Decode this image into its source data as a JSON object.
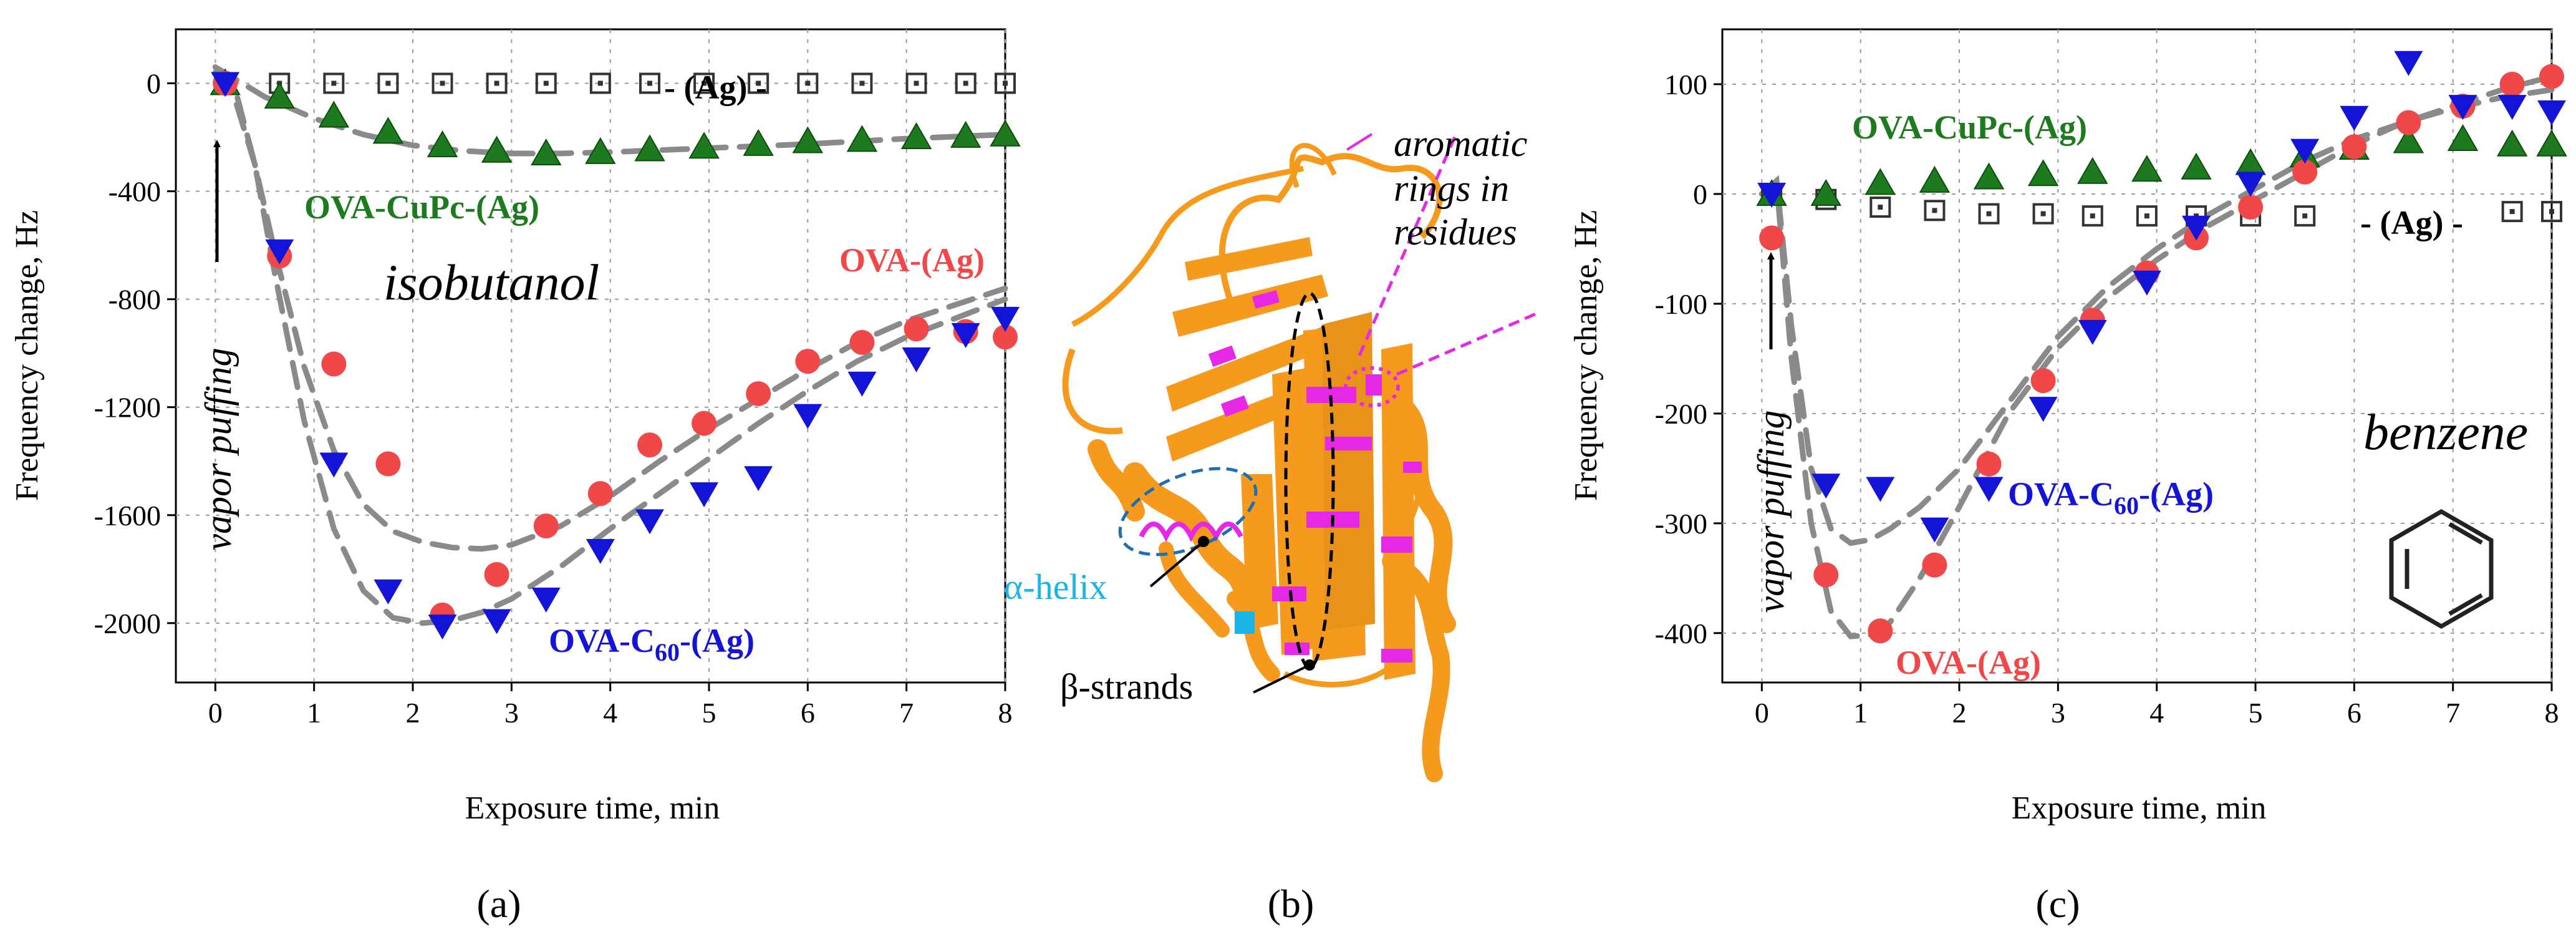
{
  "figure": {
    "panels": {
      "a": "(a)",
      "b": "(b)",
      "c": "(c)"
    },
    "colors": {
      "ova": "#f04848",
      "c60": "#1414d8",
      "cupc": "#1e7a1e",
      "ag": "#333333",
      "fit": "#8a8a8a",
      "protein": "#f59a1c",
      "aromatic": "#e628e6",
      "helix_label": "#19b5e6"
    },
    "structure": {
      "aromatic_label_1": "aromatic",
      "aromatic_label_2": "rings in",
      "aromatic_label_3": "residues",
      "helix_label": "α-helix",
      "strands_label": "β-strands"
    }
  },
  "chart_data": [
    {
      "type": "scatter",
      "panel": "a",
      "xlabel": "Exposure time, min",
      "ylabel": "Frequency change, Hz",
      "xlim": [
        -0.4,
        8
      ],
      "ylim": [
        -2220,
        200
      ],
      "xticks": [
        "0",
        "1",
        "2",
        "3",
        "4",
        "5",
        "6",
        "7",
        "8"
      ],
      "yticks": [
        "0",
        "-400",
        "-800",
        "-1200",
        "-1600",
        "-2000"
      ],
      "ytick_values": [
        0,
        -400,
        -800,
        -1200,
        -1600,
        -2000
      ],
      "annotations": {
        "analyte": "isobutanol",
        "puff": "vapor puffing",
        "ag_label": "- (Ag) -",
        "cupc_label": "OVA-CuPc-(Ag)",
        "ova_label": "OVA-(Ag)",
        "c60_label_prefix": "OVA-C",
        "c60_label_sub": "60",
        "c60_label_suffix": "-(Ag)"
      },
      "series": [
        {
          "name": "OVA-(Ag)",
          "marker": "circle",
          "color": "#f04848",
          "x": [
            0.1,
            0.65,
            1.2,
            1.75,
            2.3,
            2.85,
            3.35,
            3.9,
            4.4,
            4.95,
            5.5,
            6.0,
            6.55,
            7.1,
            7.6,
            8.0
          ],
          "y": [
            0,
            -640,
            -1040,
            -1410,
            -1970,
            -1820,
            -1640,
            -1520,
            -1340,
            -1260,
            -1150,
            -1030,
            -960,
            -910,
            -920,
            -940
          ]
        },
        {
          "name": "OVA-C60-(Ag)",
          "marker": "triangle-down",
          "color": "#1414d8",
          "x": [
            0.1,
            0.65,
            1.2,
            1.75,
            2.3,
            2.85,
            3.35,
            3.9,
            4.4,
            4.95,
            5.5,
            6.0,
            6.55,
            7.1,
            7.6,
            8.0
          ],
          "y": [
            0,
            -620,
            -1410,
            -1880,
            -2010,
            -1990,
            -1910,
            -1730,
            -1620,
            -1520,
            -1460,
            -1230,
            -1110,
            -1020,
            -930,
            -870
          ]
        },
        {
          "name": "OVA-CuPc-(Ag)",
          "marker": "triangle-up",
          "color": "#1e7a1e",
          "x": [
            0.1,
            0.65,
            1.2,
            1.75,
            2.3,
            2.85,
            3.35,
            3.9,
            4.4,
            4.95,
            5.5,
            6.0,
            6.55,
            7.1,
            7.6,
            8.0
          ],
          "y": [
            0,
            -50,
            -120,
            -180,
            -230,
            -250,
            -260,
            -255,
            -245,
            -235,
            -225,
            -215,
            -210,
            -200,
            -195,
            -190
          ]
        },
        {
          "name": "(Ag)",
          "marker": "square-open",
          "color": "#333333",
          "x": [
            0.1,
            0.65,
            1.2,
            1.75,
            2.3,
            2.85,
            3.35,
            3.9,
            4.4,
            4.95,
            5.5,
            6.0,
            6.55,
            7.1,
            7.6,
            8.0
          ],
          "y": [
            0,
            0,
            0,
            0,
            0,
            0,
            0,
            0,
            0,
            0,
            0,
            0,
            0,
            0,
            0,
            0
          ]
        }
      ],
      "fits": [
        {
          "x": [
            0,
            0.2,
            0.4,
            0.6,
            0.9,
            1.2,
            1.5,
            1.8,
            2.1,
            2.4,
            2.7,
            3.0,
            3.5,
            4.0,
            4.5,
            5.0,
            5.5,
            6.0,
            6.5,
            7.0,
            7.5,
            8.0
          ],
          "y": [
            40,
            -60,
            -300,
            -620,
            -1050,
            -1360,
            -1560,
            -1660,
            -1700,
            -1720,
            -1725,
            -1710,
            -1640,
            -1530,
            -1400,
            -1280,
            -1170,
            -1060,
            -960,
            -880,
            -820,
            -760
          ]
        },
        {
          "x": [
            0,
            0.2,
            0.4,
            0.6,
            0.9,
            1.2,
            1.5,
            1.8,
            2.1,
            2.4,
            2.7,
            3.0,
            3.5,
            4.0,
            4.5,
            5.0,
            5.5,
            6.0,
            6.5,
            7.0,
            7.5,
            8.0
          ],
          "y": [
            60,
            -20,
            -300,
            -700,
            -1250,
            -1650,
            -1880,
            -1980,
            -2000,
            -1990,
            -1960,
            -1910,
            -1790,
            -1650,
            -1520,
            -1390,
            -1260,
            -1140,
            -1030,
            -940,
            -870,
            -800
          ]
        },
        {
          "x": [
            0,
            0.5,
            1.0,
            1.5,
            2.0,
            2.5,
            3.0,
            3.5,
            4.0,
            5.0,
            6.0,
            7.0,
            8.0
          ],
          "y": [
            60,
            -50,
            -130,
            -190,
            -230,
            -250,
            -260,
            -260,
            -255,
            -240,
            -225,
            -205,
            -190
          ]
        }
      ]
    },
    {
      "type": "scatter",
      "panel": "c",
      "xlabel": "Exposure time, min",
      "ylabel": "Frequency change, Hz",
      "xlim": [
        -0.4,
        8
      ],
      "ylim": [
        -445,
        150
      ],
      "xticks": [
        "0",
        "1",
        "2",
        "3",
        "4",
        "5",
        "6",
        "7",
        "8"
      ],
      "yticks": [
        "100",
        "0",
        "-100",
        "-200",
        "-300",
        "-400"
      ],
      "ytick_values": [
        100,
        0,
        -100,
        -200,
        -300,
        -400
      ],
      "annotations": {
        "analyte": "benzene",
        "puff": "vapor puffing",
        "ag_label": "- (Ag) -",
        "cupc_label": "OVA-CuPc-(Ag)",
        "ova_label": "OVA-(Ag)",
        "c60_label_prefix": "OVA-C",
        "c60_label_sub": "60",
        "c60_label_suffix": "-(Ag)"
      },
      "series": [
        {
          "name": "OVA-(Ag)",
          "marker": "circle",
          "color": "#f04848",
          "x": [
            0.1,
            0.65,
            1.2,
            1.75,
            2.3,
            2.85,
            3.35,
            3.9,
            4.4,
            4.95,
            5.5,
            6.0,
            6.55,
            7.1,
            7.6,
            8.0
          ],
          "y": [
            -40,
            -347,
            -398,
            -338,
            -246,
            -170,
            -115,
            -72,
            -40,
            -12,
            20,
            43,
            65,
            80,
            100,
            107
          ]
        },
        {
          "name": "OVA-C60-(Ag)",
          "marker": "triangle-down",
          "color": "#1414d8",
          "x": [
            0.1,
            0.65,
            1.2,
            1.75,
            2.3,
            2.85,
            3.35,
            3.9,
            4.4,
            4.95,
            5.5,
            6.0,
            6.55,
            7.1,
            7.6,
            8.0
          ],
          "y": [
            0,
            -265,
            -268,
            -305,
            -268,
            -195,
            -125,
            -80,
            -30,
            10,
            40,
            70,
            120,
            80,
            80,
            75
          ]
        },
        {
          "name": "OVA-CuPc-(Ag)",
          "marker": "triangle-up",
          "color": "#1e7a1e",
          "x": [
            0.1,
            0.65,
            1.2,
            1.75,
            2.3,
            2.85,
            3.35,
            3.9,
            4.4,
            4.95,
            5.5,
            6.0,
            6.55,
            7.1,
            7.6,
            8.0
          ],
          "y": [
            0,
            0,
            10,
            12,
            15,
            18,
            20,
            22,
            24,
            28,
            35,
            42,
            48,
            50,
            45,
            45
          ]
        },
        {
          "name": "(Ag)",
          "marker": "square-open",
          "color": "#333333",
          "x": [
            0.1,
            0.65,
            1.2,
            1.75,
            2.3,
            2.85,
            3.35,
            3.9,
            4.4,
            4.95,
            5.5,
            7.6,
            8.0
          ],
          "y": [
            0,
            -5,
            -12,
            -15,
            -18,
            -18,
            -20,
            -20,
            -20,
            -20,
            -20,
            -16,
            -16
          ]
        }
      ],
      "fits": [
        {
          "x": [
            0,
            0.15,
            0.3,
            0.5,
            0.7,
            0.9,
            1.1,
            1.3,
            1.6,
            2.0,
            2.5,
            3.0,
            3.5,
            4.0,
            4.5,
            5.0,
            5.5,
            6.0,
            6.5,
            7.0,
            7.5,
            8.0
          ],
          "y": [
            0,
            10,
            -150,
            -300,
            -380,
            -403,
            -402,
            -390,
            -350,
            -285,
            -200,
            -140,
            -95,
            -60,
            -30,
            -5,
            20,
            45,
            65,
            80,
            95,
            107
          ]
        },
        {
          "x": [
            0,
            0.15,
            0.3,
            0.5,
            0.7,
            0.9,
            1.1,
            1.3,
            1.6,
            2.0,
            2.5,
            3.0,
            3.5,
            4.0,
            4.5,
            5.0,
            5.5,
            6.0,
            6.5,
            7.0,
            7.5,
            8.0
          ],
          "y": [
            0,
            12,
            -120,
            -250,
            -305,
            -318,
            -315,
            -305,
            -285,
            -250,
            -190,
            -130,
            -85,
            -50,
            -20,
            5,
            30,
            50,
            65,
            78,
            88,
            95
          ]
        }
      ]
    }
  ]
}
